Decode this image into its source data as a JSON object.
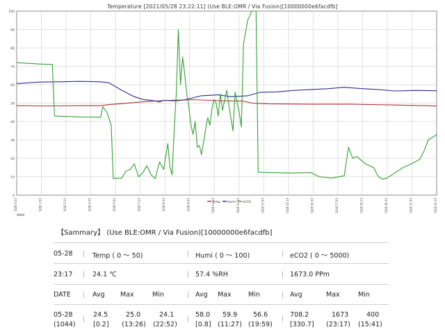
{
  "chart_data": {
    "type": "line",
    "title": "Temperature [2021/05/28 23:22:11] (Use BLE:OMR / Via Fusion)[10000000e6facdfb]",
    "xlabel": "date",
    "ylabel": "",
    "ylim": [
      0,
      100
    ],
    "y_ticks": [
      "0",
      "10",
      "20",
      "30",
      "40",
      "50",
      "60",
      "70",
      "80",
      "90",
      "100"
    ],
    "x_tick_labels": [
      "5/28 0:33",
      "5/28 1:53",
      "5/28 3:13",
      "5/28 4:33",
      "5/28 5:53",
      "5/28 7:13",
      "5/28 8:33",
      "5/28 9:53",
      "5/28 11:13",
      "5/28 12:33",
      "5/28 13:53",
      "5/28 15:13",
      "5/28 16:33",
      "5/28 17:53",
      "5/28 19:13",
      "5/28 20:33",
      "5/28 21:53",
      "5/28 23:13"
    ],
    "grid": true,
    "legend": [
      "Temp",
      "Humi",
      "eCO2"
    ],
    "legend_position": "bottom-center",
    "series": [
      {
        "name": "Temp",
        "color": "#b03030",
        "points": [
          [
            0,
            48.6
          ],
          [
            0.05,
            48.5
          ],
          [
            0.1,
            48.5
          ],
          [
            0.15,
            48.6
          ],
          [
            0.2,
            48.6
          ],
          [
            0.22,
            49.2
          ],
          [
            0.25,
            49.7
          ],
          [
            0.3,
            50.7
          ],
          [
            0.35,
            51.4
          ],
          [
            0.38,
            51.6
          ],
          [
            0.42,
            51.9
          ],
          [
            0.46,
            51.5
          ],
          [
            0.5,
            51.2
          ],
          [
            0.54,
            51.1
          ],
          [
            0.56,
            50
          ],
          [
            0.6,
            49.6
          ],
          [
            0.7,
            49.4
          ],
          [
            0.8,
            49.4
          ],
          [
            0.9,
            49.0
          ],
          [
            1,
            48.4
          ]
        ]
      },
      {
        "name": "Humi",
        "color": "#2a2a90",
        "points": [
          [
            0,
            60.6
          ],
          [
            0.05,
            61.4
          ],
          [
            0.1,
            61.6
          ],
          [
            0.15,
            61.8
          ],
          [
            0.2,
            61.6
          ],
          [
            0.22,
            61
          ],
          [
            0.25,
            57
          ],
          [
            0.28,
            53.5
          ],
          [
            0.3,
            52
          ],
          [
            0.33,
            51.2
          ],
          [
            0.34,
            50.6
          ],
          [
            0.35,
            51.5
          ],
          [
            0.38,
            51.2
          ],
          [
            0.4,
            51.8
          ],
          [
            0.44,
            54
          ],
          [
            0.48,
            54.5
          ],
          [
            0.51,
            53.5
          ],
          [
            0.55,
            54
          ],
          [
            0.58,
            55.9
          ],
          [
            0.62,
            56.1
          ],
          [
            0.66,
            56.9
          ],
          [
            0.7,
            57.4
          ],
          [
            0.74,
            57.8
          ],
          [
            0.78,
            58.6
          ],
          [
            0.82,
            57.9
          ],
          [
            0.86,
            57.4
          ],
          [
            0.9,
            56.6
          ],
          [
            0.95,
            56.9
          ],
          [
            1,
            56.7
          ]
        ]
      },
      {
        "name": "eCO2",
        "color": "#30a030",
        "points": [
          [
            0,
            72
          ],
          [
            0.05,
            71.3
          ],
          [
            0.085,
            71
          ],
          [
            0.09,
            43
          ],
          [
            0.15,
            42.5
          ],
          [
            0.2,
            42.3
          ],
          [
            0.205,
            48
          ],
          [
            0.215,
            45
          ],
          [
            0.225,
            38
          ],
          [
            0.23,
            9
          ],
          [
            0.25,
            9.2
          ],
          [
            0.26,
            13
          ],
          [
            0.27,
            14
          ],
          [
            0.28,
            17
          ],
          [
            0.29,
            10
          ],
          [
            0.3,
            12
          ],
          [
            0.31,
            16
          ],
          [
            0.32,
            11
          ],
          [
            0.33,
            9
          ],
          [
            0.34,
            18
          ],
          [
            0.35,
            14
          ],
          [
            0.36,
            28
          ],
          [
            0.365,
            15
          ],
          [
            0.37,
            11
          ],
          [
            0.375,
            35
          ],
          [
            0.38,
            55
          ],
          [
            0.385,
            90
          ],
          [
            0.39,
            60
          ],
          [
            0.395,
            75
          ],
          [
            0.4,
            66
          ],
          [
            0.405,
            55
          ],
          [
            0.41,
            48
          ],
          [
            0.415,
            38
          ],
          [
            0.42,
            33
          ],
          [
            0.425,
            40
          ],
          [
            0.43,
            26
          ],
          [
            0.435,
            27
          ],
          [
            0.44,
            22
          ],
          [
            0.445,
            29
          ],
          [
            0.45,
            36
          ],
          [
            0.455,
            42
          ],
          [
            0.46,
            38
          ],
          [
            0.465,
            47
          ],
          [
            0.47,
            52
          ],
          [
            0.475,
            50
          ],
          [
            0.48,
            43
          ],
          [
            0.485,
            55
          ],
          [
            0.49,
            46
          ],
          [
            0.5,
            57
          ],
          [
            0.51,
            42
          ],
          [
            0.515,
            35
          ],
          [
            0.52,
            56
          ],
          [
            0.525,
            50
          ],
          [
            0.53,
            45
          ],
          [
            0.535,
            37
          ],
          [
            0.54,
            82
          ],
          [
            0.55,
            95
          ],
          [
            0.56,
            100
          ],
          [
            0.57,
            100
          ],
          [
            0.575,
            12.5
          ],
          [
            0.6,
            12.3
          ],
          [
            0.65,
            12
          ],
          [
            0.7,
            12.3
          ],
          [
            0.72,
            10
          ],
          [
            0.75,
            9.3
          ],
          [
            0.78,
            10.5
          ],
          [
            0.79,
            26
          ],
          [
            0.8,
            20
          ],
          [
            0.81,
            21
          ],
          [
            0.83,
            17
          ],
          [
            0.85,
            15
          ],
          [
            0.86,
            10.5
          ],
          [
            0.87,
            8.7
          ],
          [
            0.88,
            9
          ],
          [
            0.9,
            12
          ],
          [
            0.92,
            15
          ],
          [
            0.94,
            17
          ],
          [
            0.96,
            19.5
          ],
          [
            0.97,
            24
          ],
          [
            0.98,
            30
          ],
          [
            1,
            32.8
          ]
        ]
      }
    ]
  },
  "summary": {
    "title": "【Sammary】 (Use BLE:OMR / Via Fusion)[10000000e6facdfb]",
    "sep": "|",
    "row1": {
      "date": "05-28",
      "temp_label": "Temp ( 0 〜 50)",
      "humi_label": "Humi ( 0 〜 100)",
      "eco2_label": "eCO2 ( 0 〜 5000)"
    },
    "row2": {
      "time": "23:17",
      "temp": "24.1 ℃",
      "humi": "57.4 %RH",
      "eco2": "1673.0 PPm"
    },
    "row3": {
      "date": "DATE",
      "avg": "Avg",
      "max": "Max",
      "min": "Min"
    },
    "row4": {
      "date": "05-28",
      "count": "(1044)",
      "t_avg": "24.5",
      "t_avg_sd": "[0.2]",
      "t_max": "25.0",
      "t_max_time": "(13:26)",
      "t_min": "24.1",
      "t_min_time": "(22:52)",
      "h_avg": "58.0",
      "h_avg_sd": "[0.8]",
      "h_max": "59.9",
      "h_max_time": "(11:27)",
      "h_min": "56.6",
      "h_min_time": "(19:59)",
      "e_avg": "708.2",
      "e_avg_sd": "[330.7]",
      "e_max": "1673",
      "e_max_time": "(23:17)",
      "e_min": "400",
      "e_min_time": "(15:41)"
    }
  }
}
